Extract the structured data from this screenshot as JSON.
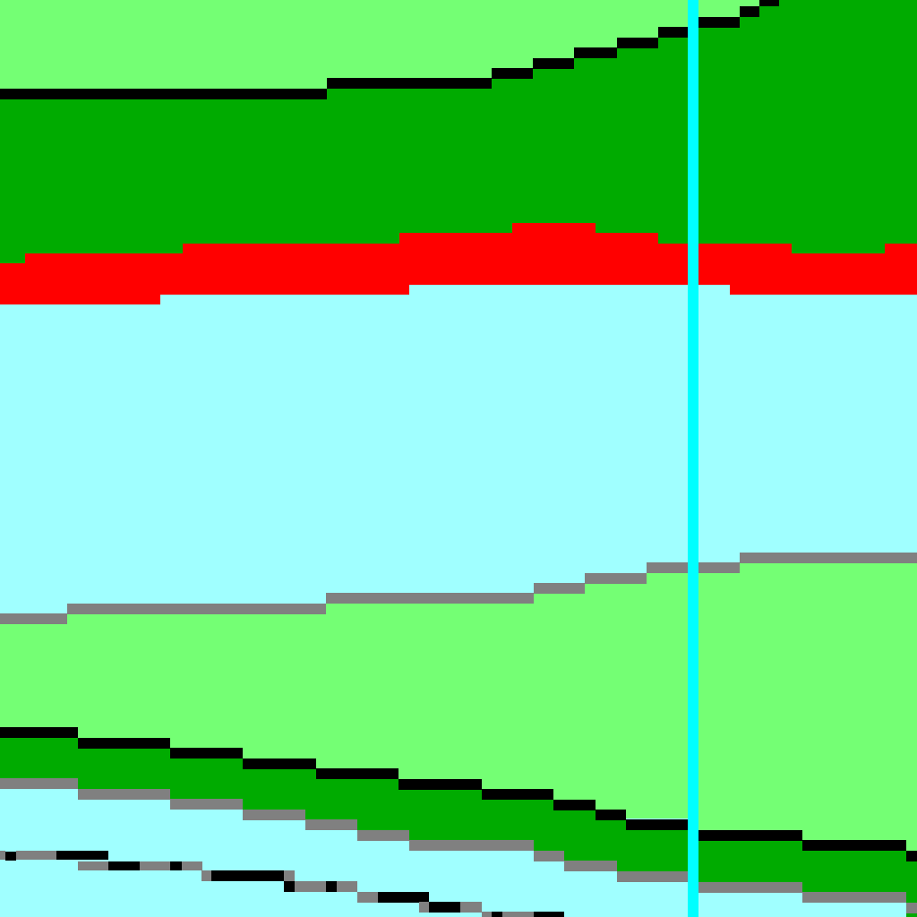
{
  "map": {
    "colors": {
      "water": "#a0ffff",
      "light_green": "#74ff74",
      "dark_green": "#00ab00",
      "red": "#ff0000",
      "black": "#000000",
      "gray": "#808080",
      "cursor": "#00ffff"
    },
    "bands": [
      {
        "name": "upper-light-green-band",
        "fill_key": "light_green"
      },
      {
        "name": "upper-dark-green-band",
        "fill_key": "dark_green"
      },
      {
        "name": "red-band",
        "fill_key": "red"
      },
      {
        "name": "central-water-band",
        "fill_key": "water"
      },
      {
        "name": "lower-light-green-band",
        "fill_key": "light_green"
      },
      {
        "name": "lower-dark-green-band",
        "fill_key": "dark_green"
      },
      {
        "name": "bottom-water-band",
        "fill_key": "water"
      }
    ],
    "cursor_line": {
      "name": "vertical-cursor-line",
      "color_key": "cursor"
    }
  }
}
